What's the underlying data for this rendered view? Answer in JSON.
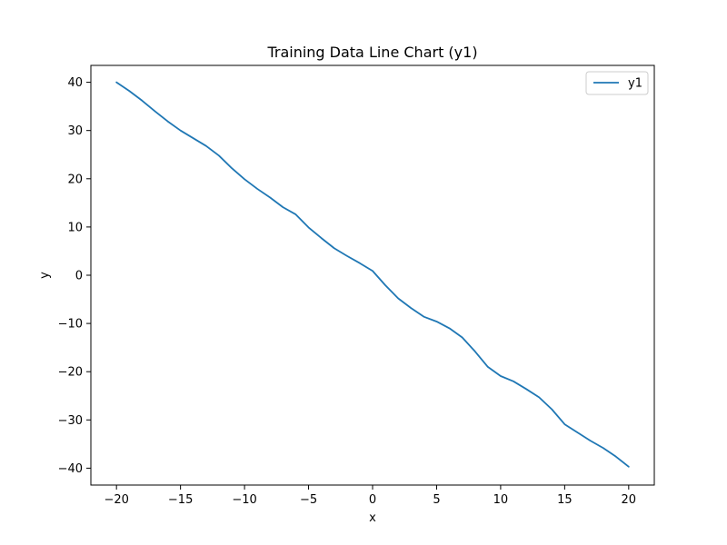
{
  "chart_data": {
    "type": "line",
    "title": "Training Data Line Chart (y1)",
    "xlabel": "x",
    "ylabel": "y",
    "xlim": [
      -22,
      22
    ],
    "ylim": [
      -43.5,
      43.5
    ],
    "x_ticks": [
      -20,
      -15,
      -10,
      -5,
      0,
      5,
      10,
      15,
      20
    ],
    "y_ticks": [
      -40,
      -30,
      -20,
      -10,
      0,
      10,
      20,
      30,
      40
    ],
    "x_tick_labels": [
      "−20",
      "−15",
      "−10",
      "−5",
      "0",
      "5",
      "10",
      "15",
      "20"
    ],
    "y_tick_labels": [
      "−40",
      "−30",
      "−20",
      "−10",
      "0",
      "10",
      "20",
      "30",
      "40"
    ],
    "grid": false,
    "legend_position": "top-right",
    "series": [
      {
        "name": "y1",
        "color": "#1f77b4",
        "x": [
          -20,
          -19,
          -18,
          -17,
          -16,
          -15,
          -14,
          -13,
          -12,
          -11,
          -10,
          -9,
          -8,
          -7,
          -6,
          -5,
          -4,
          -3,
          -2,
          -1,
          0,
          1,
          2,
          3,
          4,
          5,
          6,
          7,
          8,
          9,
          10,
          11,
          12,
          13,
          14,
          15,
          16,
          17,
          18,
          19,
          20
        ],
        "y": [
          40,
          38.2,
          36.2,
          34.0,
          31.9,
          30.0,
          28.4,
          26.8,
          24.8,
          22.2,
          19.9,
          17.9,
          16.1,
          14.1,
          12.6,
          9.9,
          7.7,
          5.6,
          4.0,
          2.5,
          0.9,
          -2.1,
          -4.8,
          -6.8,
          -8.6,
          -9.6,
          -11.0,
          -12.9,
          -15.8,
          -19.0,
          -20.9,
          -22.0,
          -23.6,
          -25.3,
          -27.8,
          -30.9,
          -32.6,
          -34.3,
          -35.8,
          -37.6,
          -39.7
        ]
      }
    ]
  }
}
